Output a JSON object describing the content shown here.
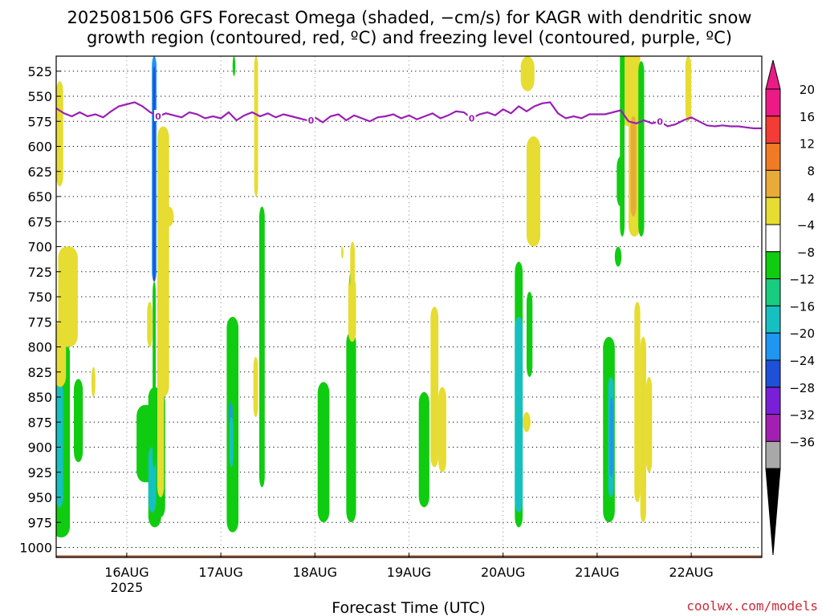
{
  "title": {
    "line1": "2025081506 GFS Forecast Omega (shaded, −cm/s) for KAGR with dendritic snow",
    "line2": "growth region (contoured, red, ºC) and freezing level (contoured, purple, ºC)"
  },
  "credit": "coolwx.com/models",
  "chart_data": {
    "type": "heatmap",
    "xlabel": "Forecast Time (UTC)",
    "x_ticks": [
      {
        "label": "16AUG",
        "sublabel": "2025",
        "hours": 18
      },
      {
        "label": "17AUG",
        "sublabel": "",
        "hours": 42
      },
      {
        "label": "18AUG",
        "sublabel": "",
        "hours": 66
      },
      {
        "label": "19AUG",
        "sublabel": "",
        "hours": 90
      },
      {
        "label": "20AUG",
        "sublabel": "",
        "hours": 114
      },
      {
        "label": "21AUG",
        "sublabel": "",
        "hours": 138
      },
      {
        "label": "22AUG",
        "sublabel": "",
        "hours": 162
      }
    ],
    "xlim_hours": [
      0,
      180
    ],
    "ylabel": "",
    "y_ticks": [
      525,
      550,
      575,
      600,
      625,
      650,
      675,
      700,
      725,
      750,
      775,
      800,
      825,
      850,
      875,
      900,
      925,
      950,
      975,
      1000
    ],
    "ylim": [
      510,
      1010
    ],
    "y_inverted": true,
    "grid": "dotted",
    "colorbar": {
      "labels": [
        "20",
        "16",
        "12",
        "8",
        "4",
        "−4",
        "−8",
        "−12",
        "−16",
        "−20",
        "−24",
        "−28",
        "−32",
        "−36"
      ],
      "colors": [
        "#ec1a86",
        "#f23c35",
        "#f07b24",
        "#e8ab3a",
        "#e6dc32",
        "#ffffff",
        "#10cc10",
        "#18cc80",
        "#16c0c0",
        "#1f96f0",
        "#1f50d8",
        "#7a1fd8",
        "#a21fb2",
        "#a8a8a8"
      ],
      "top_arrow_color": "#ec1a86",
      "bottom_arrow_color": "#000000"
    },
    "omega_regions": [
      {
        "x": [
          -6.5,
          -1.5
        ],
        "y": [
          811,
          985
        ],
        "value": -6
      },
      {
        "x": [
          -2,
          2.5
        ],
        "y": [
          795,
          990
        ],
        "value": -6
      },
      {
        "x": [
          -1,
          0.8
        ],
        "y": [
          835,
          960
        ],
        "value": -14
      },
      {
        "x": [
          3.5,
          5.8
        ],
        "y": [
          832,
          915
        ],
        "value": -5
      },
      {
        "x": [
          -1,
          0.8
        ],
        "y": [
          535,
          640
        ],
        "value": 5
      },
      {
        "x": [
          -0.5,
          4.5
        ],
        "y": [
          700,
          800
        ],
        "value": 5
      },
      {
        "x": [
          -1.5,
          1.5
        ],
        "y": [
          775,
          840
        ],
        "value": 5
      },
      {
        "x": [
          8,
          9
        ],
        "y": [
          820,
          850
        ],
        "value": 5
      },
      {
        "x": [
          -4.5,
          0.5
        ],
        "y": [
          858,
          935
        ],
        "value": -6
      },
      {
        "x": [
          -1.5,
          1.8
        ],
        "y": [
          840,
          980
        ],
        "value": -6
      },
      {
        "x": [
          0.5,
          2.8
        ],
        "y": [
          845,
          970
        ],
        "value": -6
      },
      {
        "x": [
          -1.5,
          0.5
        ],
        "y": [
          900,
          965
        ],
        "value": -14
      },
      {
        "x": [
          -0.6,
          0.6
        ],
        "y": [
          510,
          735
        ],
        "value": -18
      },
      {
        "x": [
          -0.3,
          0.3
        ],
        "y": [
          520,
          735
        ],
        "value": -22
      },
      {
        "x": [
          -0.4,
          0.4
        ],
        "y": [
          735,
          920
        ],
        "value": -6
      },
      {
        "x": [
          0.8,
          3.8
        ],
        "y": [
          580,
          850
        ],
        "value": 5
      },
      {
        "x": [
          1.5,
          3.5
        ],
        "y": [
          610,
          760
        ],
        "value": 8
      },
      {
        "x": [
          2.5,
          5
        ],
        "y": [
          660,
          680
        ],
        "value": 5
      },
      {
        "x": [
          -1.8,
          -0.5
        ],
        "y": [
          755,
          800
        ],
        "value": 5
      },
      {
        "x": [
          0.8,
          2.5
        ],
        "y": [
          800,
          950
        ],
        "value": 5
      },
      {
        "x": [
          -5.5,
          -2.5
        ],
        "y": [
          770,
          985
        ],
        "value": -6
      },
      {
        "x": [
          -5,
          -4
        ],
        "y": [
          855,
          880
        ],
        "value": -16
      },
      {
        "x": [
          -4.8,
          -3.8
        ],
        "y": [
          870,
          920
        ],
        "value": -12
      },
      {
        "x": [
          1.3,
          2.5
        ],
        "y": [
          810,
          870
        ],
        "value": 5
      },
      {
        "x": [
          2.8,
          4.2
        ],
        "y": [
          660,
          940
        ],
        "value": -6
      },
      {
        "x": [
          1.5,
          2.5
        ],
        "y": [
          510,
          650
        ],
        "value": 5
      },
      {
        "x": [
          -4,
          -3.3
        ],
        "y": [
          510,
          530
        ],
        "value": -6
      },
      {
        "x": [
          -6.3,
          -3.3
        ],
        "y": [
          835,
          975
        ],
        "value": -6
      },
      {
        "x": [
          1,
          3.5
        ],
        "y": [
          785,
          975
        ],
        "value": -6
      },
      {
        "x": [
          1.5,
          3.5
        ],
        "y": [
          730,
          795
        ],
        "value": 5
      },
      {
        "x": [
          1.8,
          2.8
        ],
        "y": [
          725,
          740
        ],
        "value": -6
      },
      {
        "x": [
          2,
          3.2
        ],
        "y": [
          695,
          770
        ],
        "value": 5
      },
      {
        "x": [
          -0.3,
          0.3
        ],
        "y": [
          700,
          712
        ],
        "value": 5
      },
      {
        "x": [
          -4.5,
          -1.8
        ],
        "y": [
          845,
          960
        ],
        "value": -6
      },
      {
        "x": [
          -1.5,
          0.5
        ],
        "y": [
          760,
          920
        ],
        "value": 5
      },
      {
        "x": [
          0.5,
          2.5
        ],
        "y": [
          840,
          925
        ],
        "value": 5
      },
      {
        "x": [
          -4,
          -2
        ],
        "y": [
          715,
          980
        ],
        "value": -6
      },
      {
        "x": [
          -4,
          -2
        ],
        "y": [
          770,
          965
        ],
        "value": -14
      },
      {
        "x": [
          -1,
          0.5
        ],
        "y": [
          745,
          830
        ],
        "value": -6
      },
      {
        "x": [
          -2.5,
          1
        ],
        "y": [
          510,
          545
        ],
        "value": 5
      },
      {
        "x": [
          -1,
          2.5
        ],
        "y": [
          590,
          700
        ],
        "value": 5
      },
      {
        "x": [
          -2,
          0
        ],
        "y": [
          865,
          885
        ],
        "value": 5
      },
      {
        "x": [
          -5.5,
          -2.5
        ],
        "y": [
          790,
          975
        ],
        "value": -6
      },
      {
        "x": [
          -4.2,
          -2.8
        ],
        "y": [
          830,
          950
        ],
        "value": -14
      },
      {
        "x": [
          -3.8,
          -2.9
        ],
        "y": [
          850,
          930
        ],
        "value": -19
      },
      {
        "x": [
          -2.5,
          -0.8
        ],
        "y": [
          700,
          720
        ],
        "value": -6
      },
      {
        "x": [
          -0.8,
          2.5
        ],
        "y": [
          470,
          580
        ],
        "value": 5
      },
      {
        "x": [
          2.5,
          4
        ],
        "y": [
          755,
          955
        ],
        "value": 5
      },
      {
        "x": [
          4,
          5.5
        ],
        "y": [
          790,
          975
        ],
        "value": 5
      },
      {
        "x": [
          5.5,
          7
        ],
        "y": [
          830,
          925
        ],
        "value": 5
      },
      {
        "x": [
          -1.2,
          0
        ],
        "y": [
          495,
          690
        ],
        "value": -6
      },
      {
        "x": [
          -2,
          0
        ],
        "y": [
          610,
          660
        ],
        "value": -6
      },
      {
        "x": [
          1,
          4
        ],
        "y": [
          485,
          690
        ],
        "value": 5
      },
      {
        "x": [
          1.2,
          3.5
        ],
        "y": [
          485,
          580
        ],
        "value": 5
      },
      {
        "x": [
          1.5,
          3
        ],
        "y": [
          570,
          670
        ],
        "value": 12
      },
      {
        "x": [
          3.5,
          5
        ],
        "y": [
          515,
          690
        ],
        "value": -6
      },
      {
        "x": [
          15.5,
          17
        ],
        "y": [
          510,
          575
        ],
        "value": 5
      }
    ],
    "omega_anchor_hours": [
      1,
      1,
      1,
      1,
      1,
      1,
      1,
      1,
      25,
      25,
      25,
      25,
      25,
      25,
      25,
      25,
      25,
      25,
      25,
      25,
      49,
      49,
      49,
      49,
      49,
      49,
      49,
      73,
      73,
      73,
      73,
      73,
      73,
      97,
      97,
      97,
      121,
      121,
      121,
      121,
      121,
      121,
      145,
      145,
      145,
      145,
      145,
      145,
      145,
      145,
      145,
      145,
      145,
      145,
      145,
      145,
      145
    ],
    "freezing_level": {
      "contour_value": "0",
      "x_hours": [
        0,
        2,
        4,
        6,
        8,
        10,
        12,
        14,
        16,
        18,
        20,
        22,
        24,
        26,
        28,
        30,
        32,
        34,
        36,
        38,
        40,
        42,
        44,
        46,
        48,
        50,
        52,
        54,
        56,
        58,
        60,
        62,
        64,
        66,
        68,
        70,
        72,
        74,
        76,
        78,
        80,
        82,
        84,
        86,
        88,
        90,
        92,
        94,
        96,
        98,
        100,
        102,
        104,
        106,
        108,
        110,
        112,
        114,
        116,
        118,
        120,
        122,
        124,
        126,
        128,
        130,
        132,
        134,
        136,
        138,
        140,
        142,
        144,
        146,
        148,
        150,
        152,
        154,
        156,
        158,
        160,
        162,
        164,
        166,
        168,
        170,
        172,
        174,
        176,
        178,
        180
      ],
      "pressure": [
        562,
        567,
        570,
        566,
        570,
        568,
        571,
        565,
        560,
        558,
        556,
        560,
        566,
        570,
        567,
        569,
        571,
        566,
        568,
        572,
        570,
        572,
        566,
        574,
        569,
        566,
        570,
        567,
        571,
        568,
        570,
        572,
        574,
        571,
        576,
        570,
        568,
        574,
        569,
        572,
        575,
        571,
        570,
        568,
        572,
        569,
        573,
        570,
        567,
        572,
        569,
        565,
        566,
        572,
        568,
        566,
        569,
        563,
        567,
        560,
        565,
        560,
        557,
        556,
        567,
        572,
        570,
        572,
        568,
        568,
        568,
        566,
        564,
        575,
        577,
        574,
        577,
        575,
        580,
        578,
        574,
        571,
        575,
        579,
        580,
        579,
        580,
        580,
        581,
        582,
        582
      ],
      "label_hours": [
        26,
        65,
        106,
        154
      ]
    },
    "surface_elevation_pressure": 1008
  }
}
